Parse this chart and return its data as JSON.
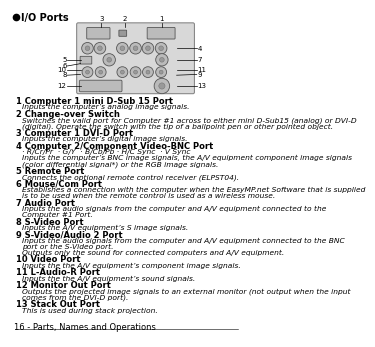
{
  "title_bullet": "I/O Ports",
  "footer": "16 - Parts, Names and Operations",
  "bg_color": "#ffffff",
  "text_color": "#000000",
  "items": [
    {
      "num": "1",
      "bold": "Computer 1 mini D-Sub 15 Port",
      "desc": [
        "Inputs the computer’s analog image signals."
      ]
    },
    {
      "num": "2",
      "bold": "Change-over Switch",
      "desc": [
        "Switches the valid port for Computer #1 across to either mini D-Sub15 (analog) or DVI-D",
        "(digital). Operate the switch with the tip of a ballpoint pen or other pointed object."
      ]
    },
    {
      "num": "3",
      "bold": "Computer 1 DVI-D Port",
      "desc": [
        "Inputs the computer’s digital image signals."
      ]
    },
    {
      "num": "4",
      "bold": "Computer 2/Component Video-BNC Port",
      "desc": [
        "· R/Cr/Pr  · G/Y  · B/Cb/Pb · H/C Sync  · V Sync",
        "Inputs the computer’s BNC image signals, the A/V equipment component image signals",
        "(color differential signal*) or the RGB image signals."
      ]
    },
    {
      "num": "5",
      "bold": "Remote Port",
      "desc": [
        "Connects the optional remote control receiver (ELPST04)."
      ]
    },
    {
      "num": "6",
      "bold": "Mouse/Com Port",
      "desc": [
        "Establishes a connection with the computer when the EasyMP.net Software that is supplied",
        "is to be used when the remote control is used as a wireless mouse."
      ]
    },
    {
      "num": "7",
      "bold": "Audio Port",
      "desc": [
        "Inputs the audio signals from the computer and A/V equipment connected to the",
        "Computer #1 Port."
      ]
    },
    {
      "num": "8",
      "bold": "S-Video Port",
      "desc": [
        "Inputs the A/V equipment’s S image signals."
      ]
    },
    {
      "num": "9",
      "bold": "S-Video/Audio 2 Port",
      "desc": [
        "Inputs the audio signals from the computer and A/V equipment connected to the BNC",
        "port or the S-Video port.",
        "Outputs only the sound for connected computers and A/V equipment."
      ]
    },
    {
      "num": "10",
      "bold": "Video Port",
      "desc": [
        "Inputs the the A/V equipment’s component image signals."
      ]
    },
    {
      "num": "11",
      "bold": "L-Audio-R Port",
      "desc": [
        "Inputs the the A/V equipment’s sound signals."
      ]
    },
    {
      "num": "12",
      "bold": "Monitor Out Port",
      "desc": [
        "Outputs the projected image signals to an external monitor (not output when the input",
        "comes from the DVI-D port)."
      ]
    },
    {
      "num": "13",
      "bold": "Stack Out Port",
      "desc": [
        "This is used during stack projection."
      ]
    }
  ]
}
